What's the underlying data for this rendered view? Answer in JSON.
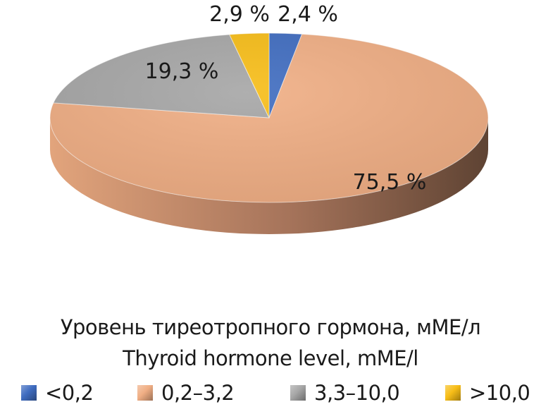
{
  "chart_data": {
    "type": "pie",
    "title": "Уровень тиреотропного гормона, мМЕ/л",
    "subtitle": "Thyroid hormone level, mME/l",
    "categories": [
      "<0,2",
      "0,2–3,2",
      "3,3–10,0",
      ">10,0"
    ],
    "values": [
      2.4,
      75.5,
      19.3,
      2.9
    ],
    "labels": [
      "2,4 %",
      "75,5 %",
      "19,3 %",
      "2,9 %"
    ],
    "colors": [
      "#3f6cc0",
      "#f0ae84",
      "#a6a6a6",
      "#f7bd17"
    ],
    "side_colors": [
      "#2c4d8a",
      "#c98c66",
      "#7f7f7f",
      "#c7960f"
    ],
    "legend_position": "bottom",
    "style": "3d-tilted"
  },
  "legend": {
    "items": [
      {
        "label": "<0,2",
        "color": "#3f6cc0"
      },
      {
        "label": "0,2–3,2",
        "color": "#f0ae84"
      },
      {
        "label": "3,3–10,0",
        "color": "#a6a6a6"
      },
      {
        "label": ">10,0",
        "color": "#f7bd17"
      }
    ]
  }
}
